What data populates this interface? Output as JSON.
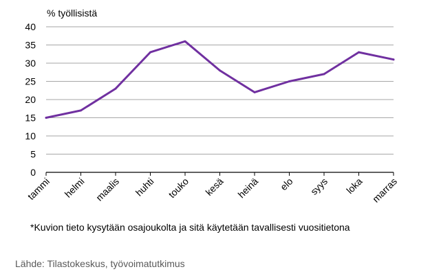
{
  "chart_data": {
    "type": "line",
    "ylabel": "% työllisistä",
    "categories": [
      "tammi",
      "helmi",
      "maalis",
      "huhti",
      "touko",
      "kesä",
      "heinä",
      "elo",
      "syys",
      "loka",
      "marras"
    ],
    "series": [
      {
        "values": [
          15,
          17,
          23,
          33,
          36,
          28,
          22,
          25,
          27,
          33,
          31
        ],
        "color": "#7030a0"
      }
    ],
    "ylim": [
      0,
      40
    ],
    "yticks": [
      0,
      5,
      10,
      15,
      20,
      25,
      30,
      35,
      40
    ],
    "grid": true
  },
  "footnote": "*Kuvion tieto kysytään osajoukolta ja sitä käytetään tavallisesti vuositietona",
  "source": "Lähde: Tilastokeskus, työvoimatutkimus",
  "colors": {
    "line": "#7030a0",
    "grid": "#a6a6a6",
    "axis": "#000000"
  }
}
